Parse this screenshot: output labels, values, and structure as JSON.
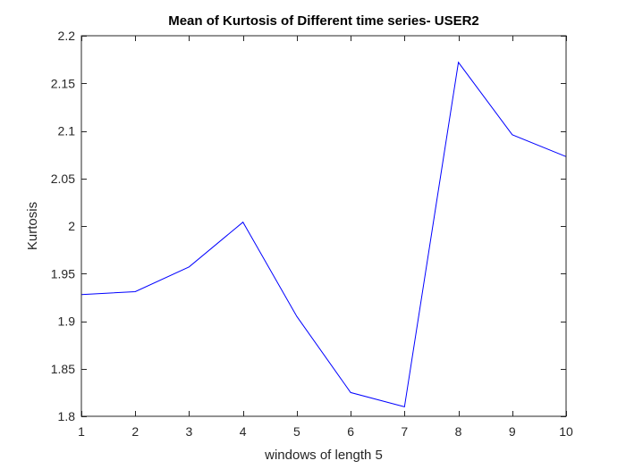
{
  "chart_data": {
    "type": "line",
    "title": "Mean of Kurtosis of Different time series- USER2",
    "xlabel": "windows of length 5",
    "ylabel": "Kurtosis",
    "xlim": [
      1,
      10
    ],
    "ylim": [
      1.8,
      2.2
    ],
    "grid": false,
    "box": true,
    "x_ticks": [
      1,
      2,
      3,
      4,
      5,
      6,
      7,
      8,
      9,
      10
    ],
    "x_tick_labels": [
      "1",
      "2",
      "3",
      "4",
      "5",
      "6",
      "7",
      "8",
      "9",
      "10"
    ],
    "y_ticks": [
      1.8,
      1.85,
      1.9,
      1.95,
      2.0,
      2.05,
      2.1,
      2.15,
      2.2
    ],
    "y_tick_labels": [
      "1.8",
      "1.85",
      "1.9",
      "1.95",
      "2",
      "2.05",
      "2.1",
      "2.15",
      "2.2"
    ],
    "series": [
      {
        "color": "#0000ff",
        "x": [
          1,
          2,
          3,
          4,
          5,
          6,
          7,
          8,
          9,
          10
        ],
        "y": [
          1.928,
          1.931,
          1.957,
          2.004,
          1.905,
          1.825,
          1.81,
          2.172,
          2.096,
          2.073
        ]
      }
    ]
  }
}
